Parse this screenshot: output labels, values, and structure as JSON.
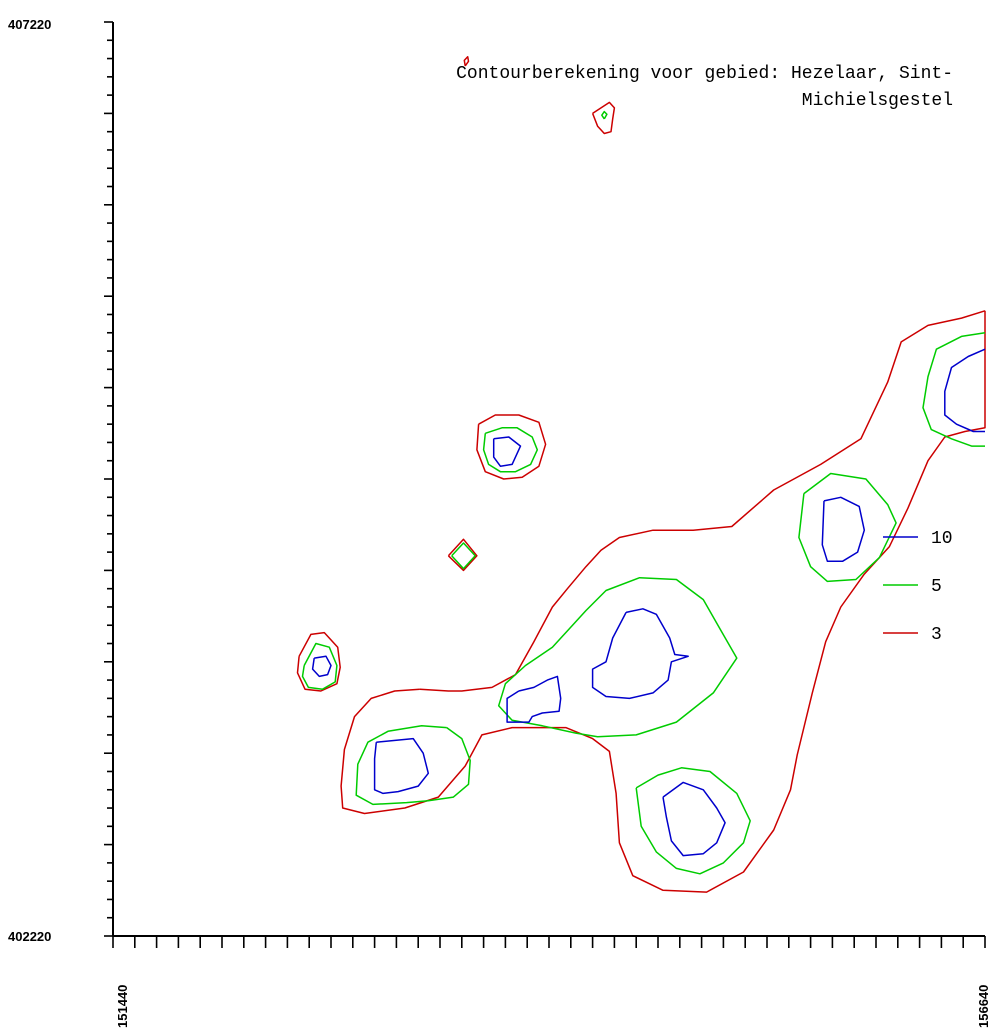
{
  "chart_data": {
    "type": "contour",
    "title_lines": [
      "Contourberekening voor gebied: Hezelaar, Sint-",
      "Michielsgestel"
    ],
    "x_range": [
      151440,
      156640
    ],
    "y_range": [
      402220,
      407220
    ],
    "x_tick_labels": [
      "151440",
      "156640"
    ],
    "y_tick_labels": [
      "407220",
      "402220"
    ],
    "grid": false,
    "legend_position": "right",
    "legend": [
      {
        "label": "10",
        "color": "#0000cc"
      },
      {
        "label": "5",
        "color": "#00cc00"
      },
      {
        "label": "3",
        "color": "#cc0000"
      }
    ],
    "contours": [
      {
        "level": 3,
        "color": "#cc0000",
        "points": [
          [
            153540,
            406980
          ],
          [
            153560,
            407005
          ],
          [
            153555,
            407030
          ],
          [
            153535,
            407010
          ]
        ]
      },
      {
        "level": 3,
        "color": "#cc0000",
        "points": [
          [
            154300,
            406720
          ],
          [
            154350,
            406750
          ],
          [
            154400,
            406780
          ],
          [
            154430,
            406750
          ],
          [
            154420,
            406690
          ],
          [
            154410,
            406620
          ],
          [
            154370,
            406610
          ],
          [
            154330,
            406650
          ]
        ]
      },
      {
        "level": 5,
        "color": "#00cc00",
        "points": [
          [
            154370,
            406690
          ],
          [
            154385,
            406715
          ],
          [
            154370,
            406730
          ],
          [
            154355,
            406710
          ]
        ]
      },
      {
        "level": 3,
        "color": "#cc0000",
        "points": [
          [
            152550,
            403750
          ],
          [
            152540,
            403660
          ],
          [
            152585,
            403570
          ],
          [
            152680,
            403560
          ],
          [
            152775,
            403600
          ],
          [
            152795,
            403690
          ],
          [
            152780,
            403800
          ],
          [
            152700,
            403880
          ],
          [
            152620,
            403870
          ]
        ]
      },
      {
        "level": 5,
        "color": "#00cc00",
        "points": [
          [
            152580,
            403700
          ],
          [
            152570,
            403640
          ],
          [
            152605,
            403580
          ],
          [
            152690,
            403570
          ],
          [
            152765,
            403610
          ],
          [
            152775,
            403700
          ],
          [
            152730,
            403800
          ],
          [
            152650,
            403820
          ]
        ]
      },
      {
        "level": 10,
        "color": "#0000cc",
        "points": [
          [
            152640,
            403740
          ],
          [
            152630,
            403680
          ],
          [
            152670,
            403640
          ],
          [
            152720,
            403650
          ],
          [
            152740,
            403700
          ],
          [
            152710,
            403750
          ]
        ]
      },
      {
        "level": 3,
        "color": "#cc0000",
        "points": [
          [
            153620,
            405020
          ],
          [
            153720,
            405070
          ],
          [
            153860,
            405070
          ],
          [
            153980,
            405030
          ],
          [
            154020,
            404910
          ],
          [
            153980,
            404790
          ],
          [
            153880,
            404730
          ],
          [
            153770,
            404720
          ],
          [
            153660,
            404760
          ],
          [
            153610,
            404880
          ]
        ]
      },
      {
        "level": 5,
        "color": "#00cc00",
        "points": [
          [
            153660,
            404970
          ],
          [
            153760,
            405000
          ],
          [
            153850,
            405000
          ],
          [
            153940,
            404950
          ],
          [
            153970,
            404880
          ],
          [
            153930,
            404800
          ],
          [
            153840,
            404760
          ],
          [
            153750,
            404760
          ],
          [
            153680,
            404800
          ],
          [
            153650,
            404880
          ]
        ]
      },
      {
        "level": 10,
        "color": "#0000cc",
        "points": [
          [
            153710,
            404940
          ],
          [
            153800,
            404950
          ],
          [
            153870,
            404900
          ],
          [
            153820,
            404800
          ],
          [
            153750,
            404790
          ],
          [
            153710,
            404840
          ]
        ]
      },
      {
        "level": 3,
        "color": "#cc0000",
        "points": [
          [
            153440,
            404300
          ],
          [
            153530,
            404390
          ],
          [
            153610,
            404300
          ],
          [
            153530,
            404220
          ]
        ]
      },
      {
        "level": 5,
        "color": "#00cc00",
        "points": [
          [
            153460,
            404300
          ],
          [
            153530,
            404370
          ],
          [
            153600,
            404300
          ],
          [
            153530,
            404230
          ]
        ]
      },
      {
        "level": 3,
        "color": "#cc0000",
        "points": [
          [
            153270,
            403570
          ],
          [
            153440,
            403560
          ],
          [
            153520,
            403560
          ],
          [
            153700,
            403580
          ],
          [
            153840,
            403650
          ],
          [
            153950,
            403830
          ],
          [
            154060,
            404020
          ],
          [
            154150,
            404120
          ],
          [
            154260,
            404240
          ],
          [
            154350,
            404330
          ],
          [
            154460,
            404400
          ],
          [
            154660,
            404440
          ],
          [
            154900,
            404440
          ],
          [
            155130,
            404460
          ],
          [
            155380,
            404660
          ],
          [
            155660,
            404800
          ],
          [
            155900,
            404940
          ],
          [
            156060,
            405250
          ],
          [
            156140,
            405470
          ],
          [
            156300,
            405560
          ],
          [
            156500,
            405600
          ],
          [
            156640,
            405640
          ]
        ]
      },
      {
        "level": 3,
        "color": "#cc0000",
        "points": [
          [
            156640,
            405640
          ],
          [
            156640,
            405000
          ],
          [
            156520,
            404980
          ],
          [
            156400,
            404950
          ],
          [
            156300,
            404820
          ],
          [
            156180,
            404560
          ],
          [
            156070,
            404350
          ],
          [
            155920,
            404200
          ],
          [
            155780,
            404020
          ],
          [
            155690,
            403830
          ],
          [
            155610,
            403550
          ],
          [
            155520,
            403210
          ],
          [
            155480,
            403020
          ],
          [
            155380,
            402800
          ],
          [
            155200,
            402570
          ],
          [
            154980,
            402460
          ],
          [
            154720,
            402470
          ],
          [
            154540,
            402550
          ],
          [
            154460,
            402730
          ],
          [
            154440,
            403000
          ],
          [
            154400,
            403230
          ],
          [
            154300,
            403300
          ],
          [
            154140,
            403360
          ],
          [
            153820,
            403360
          ],
          [
            153640,
            403320
          ],
          [
            153540,
            403150
          ],
          [
            153380,
            402980
          ],
          [
            153180,
            402920
          ],
          [
            152940,
            402890
          ],
          [
            152810,
            402920
          ],
          [
            152800,
            403040
          ],
          [
            152820,
            403240
          ],
          [
            152880,
            403420
          ],
          [
            152980,
            403520
          ],
          [
            153120,
            403560
          ],
          [
            153270,
            403570
          ]
        ]
      },
      {
        "level": 5,
        "color": "#00cc00",
        "points": [
          [
            154140,
            403880
          ],
          [
            154260,
            404000
          ],
          [
            154380,
            404110
          ],
          [
            154580,
            404180
          ],
          [
            154800,
            404170
          ],
          [
            154960,
            404060
          ],
          [
            155060,
            403900
          ],
          [
            155160,
            403740
          ],
          [
            155020,
            403550
          ],
          [
            154800,
            403390
          ],
          [
            154560,
            403320
          ],
          [
            154330,
            403310
          ],
          [
            154200,
            403330
          ],
          [
            154000,
            403370
          ],
          [
            153820,
            403400
          ],
          [
            153740,
            403480
          ],
          [
            153780,
            403600
          ],
          [
            153900,
            403700
          ],
          [
            154060,
            403800
          ]
        ]
      },
      {
        "level": 10,
        "color": "#0000cc",
        "points": [
          [
            154500,
            403990
          ],
          [
            154600,
            404010
          ],
          [
            154680,
            403980
          ],
          [
            154760,
            403850
          ],
          [
            154790,
            403760
          ],
          [
            154870,
            403750
          ],
          [
            154770,
            403720
          ],
          [
            154750,
            403620
          ],
          [
            154660,
            403550
          ],
          [
            154520,
            403520
          ],
          [
            154380,
            403530
          ],
          [
            154300,
            403580
          ],
          [
            154300,
            403680
          ],
          [
            154380,
            403720
          ],
          [
            154420,
            403850
          ]
        ]
      },
      {
        "level": 10,
        "color": "#0000cc",
        "points": [
          [
            153860,
            403560
          ],
          [
            153950,
            403580
          ],
          [
            154030,
            403620
          ],
          [
            154090,
            403640
          ],
          [
            154110,
            403520
          ],
          [
            154100,
            403450
          ],
          [
            154000,
            403440
          ],
          [
            153940,
            403420
          ],
          [
            153920,
            403390
          ],
          [
            153790,
            403390
          ],
          [
            153790,
            403520
          ]
        ]
      },
      {
        "level": 5,
        "color": "#00cc00",
        "points": [
          [
            153430,
            403360
          ],
          [
            153520,
            403300
          ],
          [
            153570,
            403180
          ],
          [
            153560,
            403050
          ],
          [
            153470,
            402980
          ],
          [
            153320,
            402960
          ],
          [
            153190,
            402950
          ],
          [
            152990,
            402940
          ],
          [
            152890,
            402990
          ],
          [
            152900,
            403160
          ],
          [
            152960,
            403280
          ],
          [
            153080,
            403340
          ],
          [
            153280,
            403370
          ]
        ]
      },
      {
        "level": 10,
        "color": "#0000cc",
        "points": [
          [
            153010,
            403280
          ],
          [
            153230,
            403300
          ],
          [
            153290,
            403220
          ],
          [
            153320,
            403110
          ],
          [
            153260,
            403040
          ],
          [
            153140,
            403010
          ],
          [
            153050,
            403000
          ],
          [
            153000,
            403020
          ],
          [
            153000,
            403190
          ]
        ]
      },
      {
        "level": 5,
        "color": "#00cc00",
        "points": [
          [
            154560,
            403030
          ],
          [
            154690,
            403100
          ],
          [
            154830,
            403140
          ],
          [
            155000,
            403120
          ],
          [
            155160,
            403000
          ],
          [
            155240,
            402850
          ],
          [
            155200,
            402730
          ],
          [
            155080,
            402620
          ],
          [
            154940,
            402560
          ],
          [
            154800,
            402590
          ],
          [
            154680,
            402680
          ],
          [
            154590,
            402820
          ]
        ]
      },
      {
        "level": 10,
        "color": "#0000cc",
        "points": [
          [
            154720,
            402980
          ],
          [
            154840,
            403060
          ],
          [
            154960,
            403020
          ],
          [
            155040,
            402920
          ],
          [
            155090,
            402840
          ],
          [
            155040,
            402730
          ],
          [
            154960,
            402670
          ],
          [
            154840,
            402660
          ],
          [
            154770,
            402740
          ],
          [
            154740,
            402870
          ]
        ]
      },
      {
        "level": 5,
        "color": "#00cc00",
        "points": [
          [
            155560,
            404640
          ],
          [
            155720,
            404750
          ],
          [
            155930,
            404720
          ],
          [
            156060,
            404580
          ],
          [
            156110,
            404480
          ],
          [
            156010,
            404290
          ],
          [
            155870,
            404170
          ],
          [
            155700,
            404160
          ],
          [
            155600,
            404240
          ],
          [
            155530,
            404400
          ]
        ]
      },
      {
        "level": 10,
        "color": "#0000cc",
        "points": [
          [
            155680,
            404600
          ],
          [
            155780,
            404620
          ],
          [
            155890,
            404570
          ],
          [
            155920,
            404440
          ],
          [
            155880,
            404320
          ],
          [
            155790,
            404270
          ],
          [
            155700,
            404270
          ],
          [
            155670,
            404360
          ]
        ]
      },
      {
        "level": 5,
        "color": "#00cc00",
        "points": [
          [
            156640,
            405520
          ],
          [
            156500,
            405500
          ],
          [
            156350,
            405430
          ],
          [
            156300,
            405280
          ],
          [
            156270,
            405110
          ],
          [
            156320,
            404990
          ],
          [
            156440,
            404940
          ],
          [
            156560,
            404900
          ],
          [
            156640,
            404900
          ]
        ]
      },
      {
        "level": 10,
        "color": "#0000cc",
        "points": [
          [
            156640,
            405430
          ],
          [
            156540,
            405390
          ],
          [
            156440,
            405330
          ],
          [
            156400,
            405200
          ],
          [
            156400,
            405070
          ],
          [
            156470,
            405020
          ],
          [
            156570,
            404980
          ],
          [
            156640,
            404980
          ]
        ]
      }
    ]
  }
}
